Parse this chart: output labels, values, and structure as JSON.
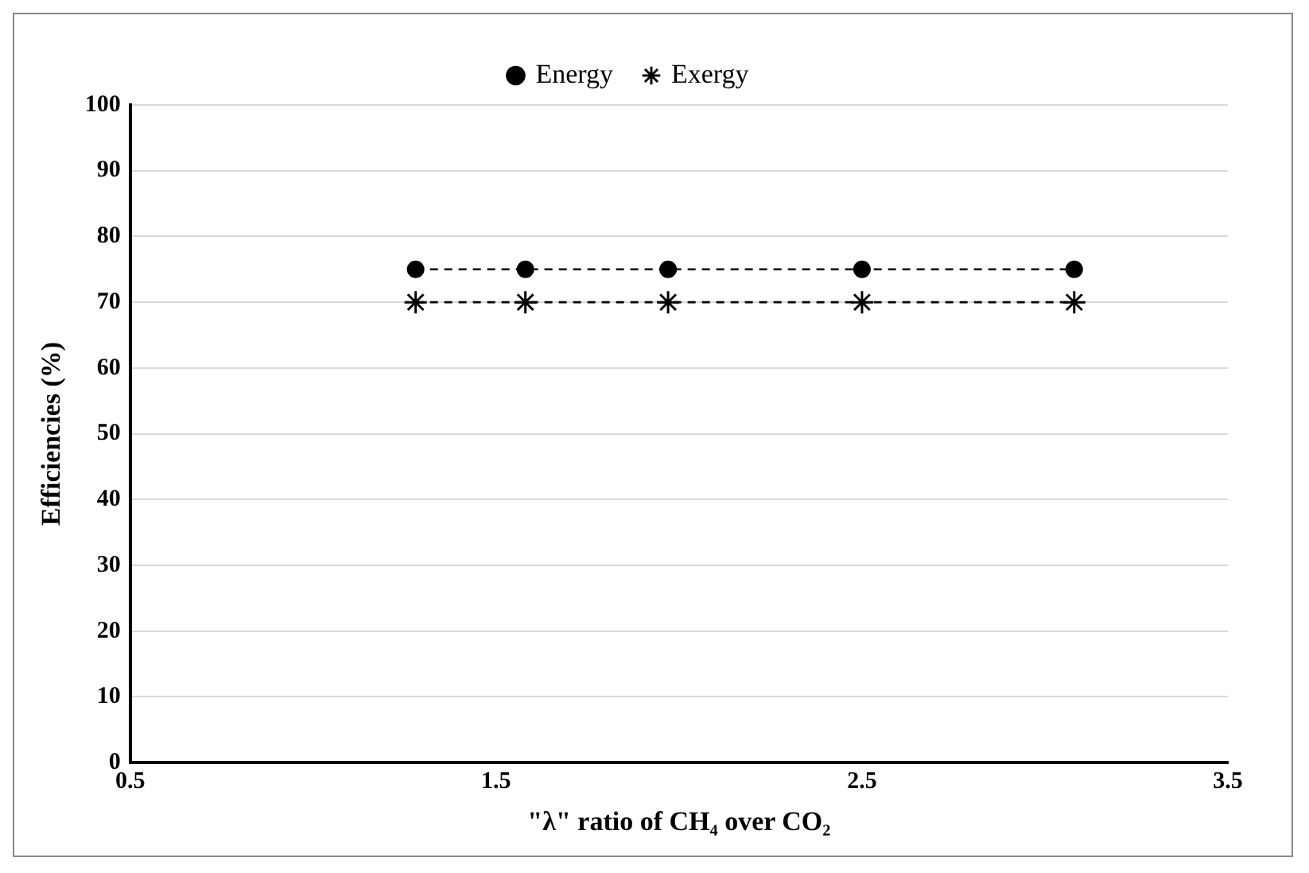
{
  "chart_data": {
    "type": "line",
    "xlabel": "\"λ\" ratio of CH₄ over CO₂",
    "ylabel": "Efficiencies (%)",
    "x": [
      1.28,
      1.58,
      1.97,
      2.5,
      3.08
    ],
    "series": [
      {
        "name": "Energy",
        "color": "#000000",
        "marker": "circle",
        "values": [
          75,
          75,
          75,
          75,
          75
        ]
      },
      {
        "name": "Exergy",
        "color": "#000000",
        "marker": "cross",
        "values": [
          70,
          70,
          70,
          70,
          70
        ]
      }
    ],
    "xlim": [
      0.5,
      3.5
    ],
    "xticks": [
      0.5,
      1.5,
      2.5,
      3.5
    ],
    "ylim": [
      0,
      100
    ],
    "yticks": [
      0,
      10,
      20,
      30,
      40,
      50,
      60,
      70,
      80,
      90,
      100
    ],
    "grid": "y",
    "legend": "top",
    "line_style": "dashed"
  }
}
